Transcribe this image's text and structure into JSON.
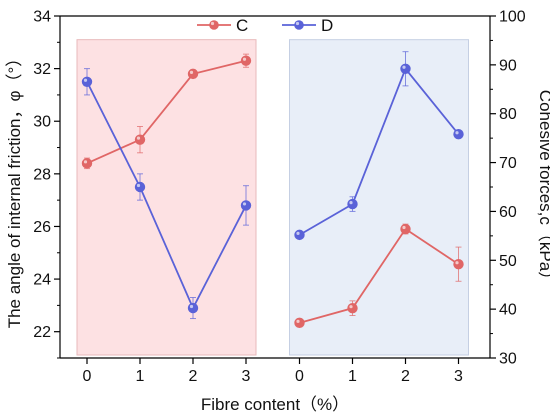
{
  "chart_data": {
    "type": "line",
    "xlabel": "Fibre content（%）",
    "ylabel_left": "The angle of internal friction，φ（°）",
    "ylabel_right": "Cohesive forces,c（kPa）",
    "ylim_left": [
      21,
      34
    ],
    "yticks_left": [
      22,
      24,
      26,
      28,
      30,
      32,
      34
    ],
    "ylim_right": [
      30,
      100
    ],
    "yticks_right": [
      30,
      40,
      50,
      60,
      70,
      80,
      90,
      100
    ],
    "x_categories": [
      "0",
      "1",
      "2",
      "3",
      "0",
      "1",
      "2",
      "3"
    ],
    "groups": [
      {
        "fill": "#fde1e3",
        "edge": "#e8b9bb",
        "x_range": [
          0,
          3
        ]
      },
      {
        "fill": "#e8eef8",
        "edge": "#c5cfe3",
        "x_range": [
          4,
          7
        ]
      }
    ],
    "series": [
      {
        "name": "C",
        "color": "#e06666",
        "axis": "left",
        "segments": [
          {
            "x": [
              0,
              1,
              2,
              3
            ],
            "y": [
              28.4,
              29.3,
              31.8,
              32.3
            ],
            "err": [
              0.2,
              0.5,
              0.15,
              0.25
            ]
          },
          {
            "x": [
              4,
              5,
              6,
              7
            ],
            "y": [
              37.2,
              40.2,
              56.4,
              49.2
            ],
            "err": [
              0.8,
              1.5,
              1.0,
              3.5
            ]
          }
        ]
      },
      {
        "name": "D",
        "color": "#5a62d8",
        "axis": "left",
        "segments": [
          {
            "x": [
              0,
              1,
              2,
              3
            ],
            "y": [
              31.5,
              27.5,
              22.9,
              26.8
            ],
            "err": [
              0.5,
              0.5,
              0.4,
              0.75
            ]
          },
          {
            "x": [
              4,
              5,
              6,
              7
            ],
            "y": [
              55.2,
              61.5,
              89.2,
              75.8
            ],
            "err": [
              0.5,
              1.5,
              3.5,
              0.5
            ]
          }
        ]
      }
    ],
    "segment_axes": [
      "left",
      "right"
    ],
    "legend_position": "top-center"
  }
}
